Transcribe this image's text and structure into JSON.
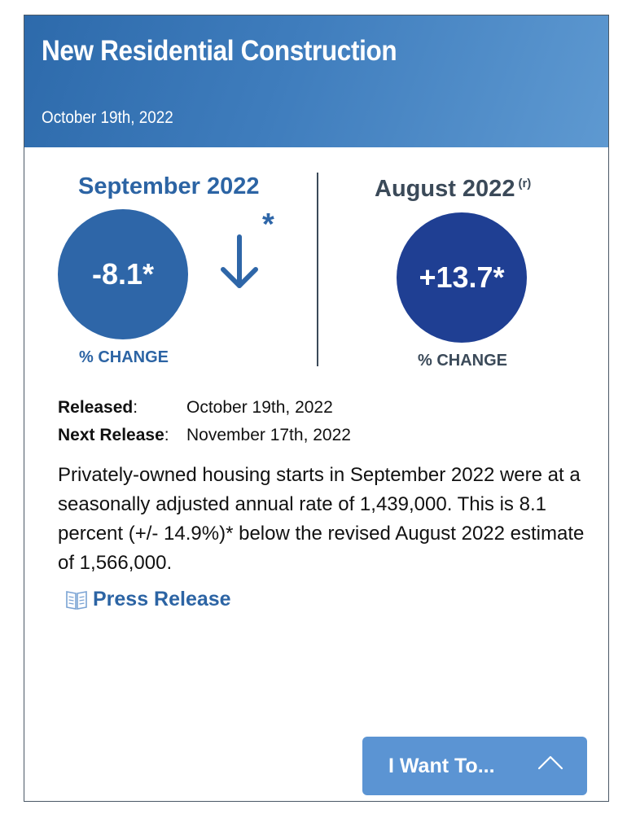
{
  "header": {
    "title": "New Residential Construction",
    "date": "October 19th, 2022"
  },
  "current": {
    "period": "September 2022",
    "value": "-8.1*",
    "change_label": "% CHANGE",
    "arrow_icon": "arrow-down-icon",
    "significance_mark": "*",
    "circle_color": "#2e66a8"
  },
  "previous": {
    "period": "August 2022",
    "revised_mark": "(r)",
    "value": "+13.7*",
    "change_label": "% CHANGE",
    "circle_color": "#1f3f93"
  },
  "release": {
    "released_label": "Released",
    "released_colon": ":",
    "released_date": "October 19th, 2022",
    "next_label": "Next Release",
    "next_colon": ":",
    "next_date": "November 17th, 2022"
  },
  "description": "Privately-owned housing starts in September 2022 were at a seasonally adjusted annual rate of 1,439,000. This is 8.1 percent (+/- 14.9%)* below the revised August 2022 estimate of 1,566,000.",
  "press_release": {
    "label": "Press Release",
    "icon": "book-icon"
  },
  "i_want_to": {
    "label": "I Want To...",
    "icon": "chevron-up-icon"
  },
  "colors": {
    "accent": "#2c64a4",
    "dark_text": "#3b4a59",
    "button": "#5b94d3"
  }
}
